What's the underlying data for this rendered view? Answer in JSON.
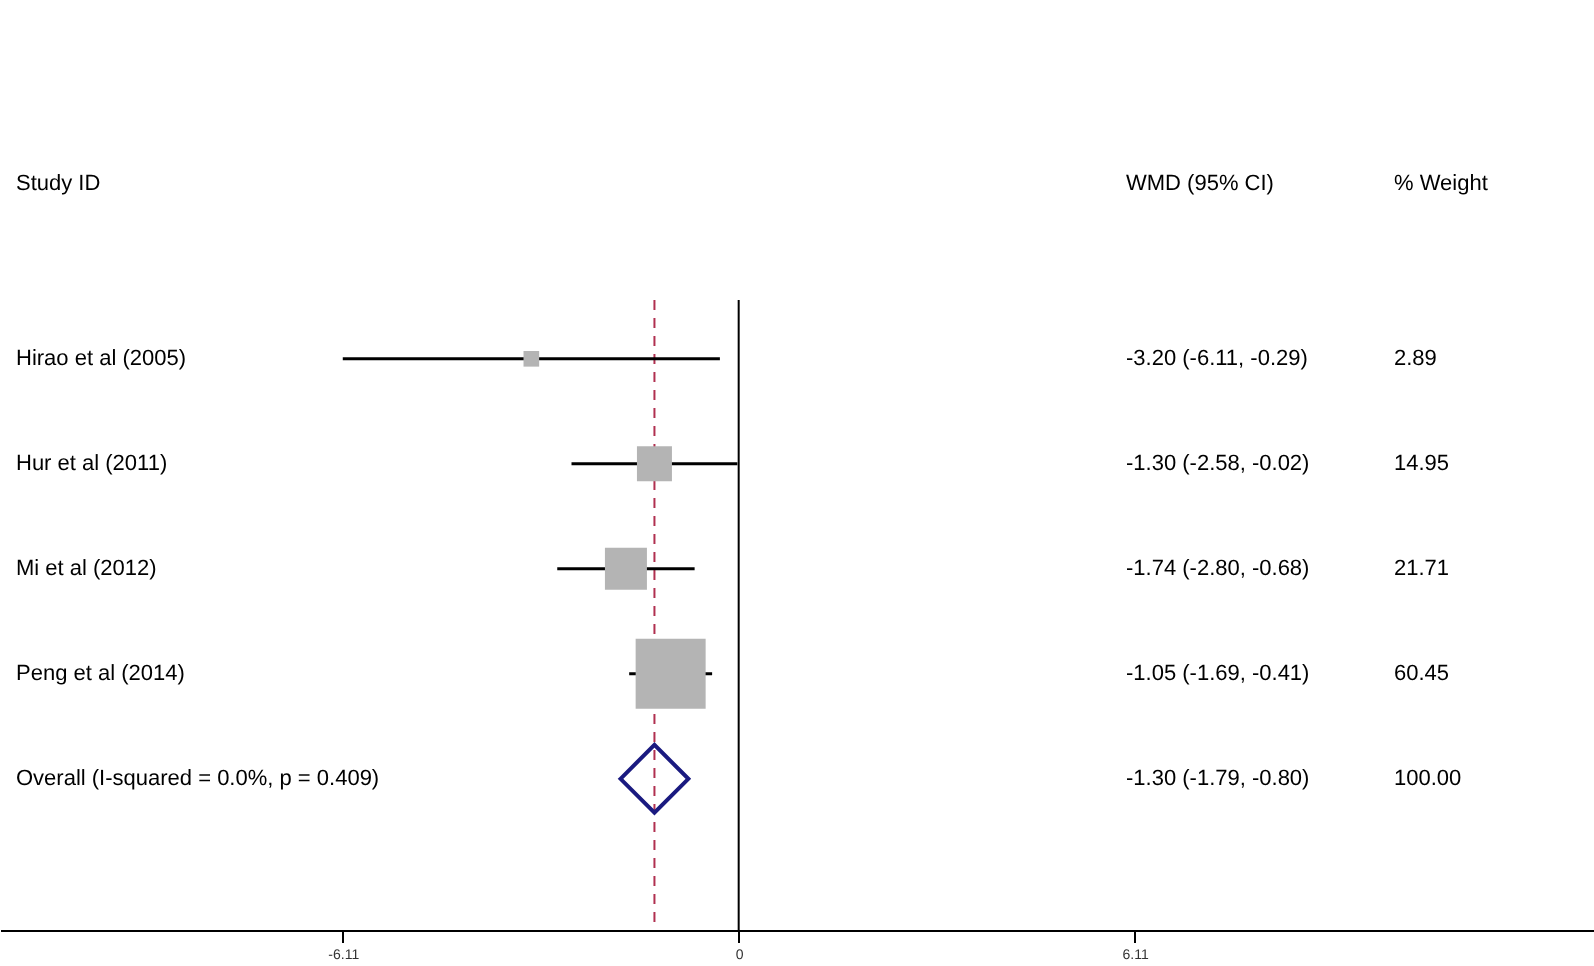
{
  "chart_data": {
    "type": "bubble",
    "orientation": "horizontal",
    "categories": [
      "Hirao et al (2005)",
      "Hur et al (2011)",
      "Mi et al (2012)",
      "Peng et al (2014)",
      "Overall  (I-squared = 0.0%, p = 0.409)"
    ],
    "series": [
      {
        "marker": "square",
        "color": "#b4b4b4",
        "values": [
          -3.2,
          -1.3,
          -1.74,
          -1.05,
          null
        ],
        "errors": [
          [
            -6.11,
            -0.29
          ],
          [
            -2.58,
            -0.02
          ],
          [
            -2.8,
            -0.68
          ],
          [
            -1.69,
            -0.41
          ],
          null
        ],
        "sizes": [
          0.05,
          0.25,
          0.36,
          1,
          null
        ]
      },
      {
        "type": "scatter",
        "marker": "diamond",
        "color": "#1a1a80",
        "values": [
          null,
          null,
          null,
          null,
          -1.3
        ]
      }
    ],
    "xlim": [
      -11.4,
      13.2
    ],
    "xticks": [
      -6.11,
      0,
      6.11
    ],
    "grid": false,
    "ref_lines": [
      {
        "axis": "x",
        "value": 0,
        "color": "#000000",
        "line_style": "solid"
      },
      {
        "axis": "x",
        "value": -1.3,
        "color": "#b03050",
        "line_style": "dashed"
      }
    ],
    "annotations": [
      "Study ID",
      "WMD (95% CI)",
      "% Weight",
      "-3.20 (-6.11, -0.29)",
      "-1.30 (-2.58, -0.02)",
      "-1.74 (-2.80, -0.68)",
      "-1.05 (-1.69, -0.41)",
      "-1.30 (-1.79, -0.80)",
      "2.89",
      "14.95",
      "21.71",
      "60.45",
      "100.00"
    ]
  }
}
